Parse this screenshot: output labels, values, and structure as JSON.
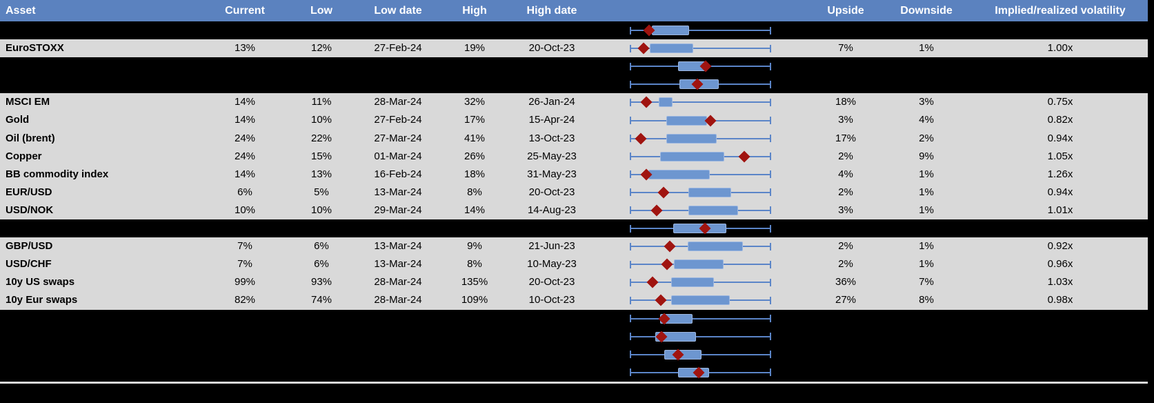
{
  "header": {
    "asset": "Asset",
    "current": "Current",
    "low": "Low",
    "low_date": "Low date",
    "high": "High",
    "high_date": "High date",
    "upside": "Upside",
    "downside": "Downside",
    "implied_realized": "Implied/realized volatility"
  },
  "colors": {
    "header_bg": "#5b82bf",
    "header_text": "#ffffff",
    "row_bg": "#d9d9d9",
    "spacer_bg": "#000000",
    "whisker": "#5b85c8",
    "box_fill": "#6d96d0",
    "box_border": "#9db7e0",
    "diamond": "#a01410",
    "bottom_line": "#d9d9d9"
  },
  "rows": [
    {
      "type": "spacer",
      "plot": {
        "box_start": 0.156,
        "box_end": 0.408,
        "diamond": 0.137
      }
    },
    {
      "type": "data",
      "label": "EuroSTOXX",
      "current": "13%",
      "low": "12%",
      "low_date": "27-Feb-24",
      "high": "19%",
      "high_date": "20-Oct-23",
      "upside": "7%",
      "downside": "1%",
      "implied_realized": "1.00x",
      "plot": {
        "box_start": 0.14,
        "box_end": 0.441,
        "diamond": 0.096
      }
    },
    {
      "type": "spacer",
      "plot": {
        "box_start": 0.343,
        "box_end": 0.53,
        "diamond": 0.538
      }
    },
    {
      "type": "spacer",
      "plot": {
        "box_start": 0.351,
        "box_end": 0.62,
        "diamond": 0.477
      }
    },
    {
      "type": "data",
      "label": "MSCI EM",
      "current": "14%",
      "low": "11%",
      "low_date": "28-Mar-24",
      "high": "32%",
      "high_date": "26-Jan-24",
      "upside": "18%",
      "downside": "3%",
      "implied_realized": "0.75x",
      "plot": {
        "box_start": 0.205,
        "box_end": 0.294,
        "diamond": 0.116
      }
    },
    {
      "type": "data",
      "label": "Gold",
      "current": "14%",
      "low": "10%",
      "low_date": "27-Feb-24",
      "high": "17%",
      "high_date": "15-Apr-24",
      "upside": "3%",
      "downside": "4%",
      "implied_realized": "0.82x",
      "plot": {
        "box_start": 0.259,
        "box_end": 0.535,
        "diamond": 0.571
      }
    },
    {
      "type": "data",
      "label": "Oil (brent)",
      "current": "24%",
      "low": "22%",
      "low_date": "27-Mar-24",
      "high": "41%",
      "high_date": "13-Oct-23",
      "upside": "17%",
      "downside": "2%",
      "implied_realized": "0.94x",
      "plot": {
        "box_start": 0.259,
        "box_end": 0.603,
        "diamond": 0.078
      }
    },
    {
      "type": "data",
      "label": "Copper",
      "current": "24%",
      "low": "15%",
      "low_date": "01-Mar-24",
      "high": "26%",
      "high_date": "25-May-23",
      "upside": "2%",
      "downside": "9%",
      "implied_realized": "1.05x",
      "plot": {
        "box_start": 0.213,
        "box_end": 0.659,
        "diamond": 0.81
      }
    },
    {
      "type": "data",
      "label": "BB commodity index",
      "current": "14%",
      "low": "13%",
      "low_date": "16-Feb-24",
      "high": "18%",
      "high_date": "31-May-23",
      "upside": "4%",
      "downside": "1%",
      "implied_realized": "1.26x",
      "plot": {
        "box_start": 0.132,
        "box_end": 0.558,
        "diamond": 0.116
      }
    },
    {
      "type": "data",
      "label": "EUR/USD",
      "current": "6%",
      "low": "5%",
      "low_date": "13-Mar-24",
      "high": "8%",
      "high_date": "20-Oct-23",
      "upside": "2%",
      "downside": "1%",
      "implied_realized": "0.94x",
      "plot": {
        "box_start": 0.416,
        "box_end": 0.709,
        "diamond": 0.24
      }
    },
    {
      "type": "data",
      "label": "USD/NOK",
      "current": "10%",
      "low": "10%",
      "low_date": "29-Mar-24",
      "high": "14%",
      "high_date": "14-Aug-23",
      "upside": "3%",
      "downside": "1%",
      "implied_realized": "1.01x",
      "plot": {
        "box_start": 0.416,
        "box_end": 0.755,
        "diamond": 0.192
      }
    },
    {
      "type": "spacer",
      "plot": {
        "box_start": 0.307,
        "box_end": 0.673,
        "diamond": 0.53
      }
    },
    {
      "type": "data",
      "label": "GBP/USD",
      "current": "7%",
      "low": "6%",
      "low_date": "13-Mar-24",
      "high": "9%",
      "high_date": "21-Jun-23",
      "upside": "2%",
      "downside": "1%",
      "implied_realized": "0.92x",
      "plot": {
        "box_start": 0.411,
        "box_end": 0.79,
        "diamond": 0.281
      }
    },
    {
      "type": "data",
      "label": "USD/CHF",
      "current": "7%",
      "low": "6%",
      "low_date": "13-Mar-24",
      "high": "8%",
      "high_date": "10-May-23",
      "upside": "2%",
      "downside": "1%",
      "implied_realized": "0.96x",
      "plot": {
        "box_start": 0.311,
        "box_end": 0.652,
        "diamond": 0.262
      }
    },
    {
      "type": "data",
      "label": "10y US swaps",
      "current": "99%",
      "low": "93%",
      "low_date": "28-Mar-24",
      "high": "135%",
      "high_date": "20-Oct-23",
      "upside": "36%",
      "downside": "7%",
      "implied_realized": "1.03x",
      "plot": {
        "box_start": 0.291,
        "box_end": 0.584,
        "diamond": 0.161
      }
    },
    {
      "type": "data",
      "label": "10y Eur swaps",
      "current": "82%",
      "low": "74%",
      "low_date": "28-Mar-24",
      "high": "109%",
      "high_date": "10-Oct-23",
      "upside": "27%",
      "downside": "8%",
      "implied_realized": "0.98x",
      "plot": {
        "box_start": 0.291,
        "box_end": 0.698,
        "diamond": 0.221
      }
    },
    {
      "type": "spacer",
      "plot": {
        "box_start": 0.213,
        "box_end": 0.433,
        "diamond": 0.242
      }
    },
    {
      "type": "spacer",
      "plot": {
        "box_start": 0.18,
        "box_end": 0.46,
        "diamond": 0.226
      }
    },
    {
      "type": "spacer",
      "plot": {
        "box_start": 0.242,
        "box_end": 0.497,
        "diamond": 0.343
      }
    },
    {
      "type": "spacer",
      "plot": {
        "box_start": 0.343,
        "box_end": 0.55,
        "diamond": 0.489
      }
    }
  ],
  "chart_data": {
    "type": "table",
    "columns": [
      "Asset",
      "Current",
      "Low",
      "Low date",
      "High",
      "High date",
      "Upside",
      "Downside",
      "Implied/realized volatility"
    ],
    "rows": [
      [
        "EuroSTOXX",
        "13%",
        "12%",
        "27-Feb-24",
        "19%",
        "20-Oct-23",
        "7%",
        "1%",
        "1.00x"
      ],
      [
        "MSCI EM",
        "14%",
        "11%",
        "28-Mar-24",
        "32%",
        "26-Jan-24",
        "18%",
        "3%",
        "0.75x"
      ],
      [
        "Gold",
        "14%",
        "10%",
        "27-Feb-24",
        "17%",
        "15-Apr-24",
        "3%",
        "4%",
        "0.82x"
      ],
      [
        "Oil (brent)",
        "24%",
        "22%",
        "27-Mar-24",
        "41%",
        "13-Oct-23",
        "17%",
        "2%",
        "0.94x"
      ],
      [
        "Copper",
        "24%",
        "15%",
        "01-Mar-24",
        "26%",
        "25-May-23",
        "2%",
        "9%",
        "1.05x"
      ],
      [
        "BB commodity index",
        "14%",
        "13%",
        "16-Feb-24",
        "18%",
        "31-May-23",
        "4%",
        "1%",
        "1.26x"
      ],
      [
        "EUR/USD",
        "6%",
        "5%",
        "13-Mar-24",
        "8%",
        "20-Oct-23",
        "2%",
        "1%",
        "0.94x"
      ],
      [
        "USD/NOK",
        "10%",
        "10%",
        "29-Mar-24",
        "14%",
        "14-Aug-23",
        "3%",
        "1%",
        "1.01x"
      ],
      [
        "GBP/USD",
        "7%",
        "6%",
        "13-Mar-24",
        "9%",
        "21-Jun-23",
        "2%",
        "1%",
        "0.92x"
      ],
      [
        "USD/CHF",
        "7%",
        "6%",
        "13-Mar-24",
        "8%",
        "10-May-23",
        "2%",
        "1%",
        "0.96x"
      ],
      [
        "10y US swaps",
        "99%",
        "93%",
        "28-Mar-24",
        "135%",
        "20-Oct-23",
        "36%",
        "7%",
        "1.03x"
      ],
      [
        "10y Eur swaps",
        "82%",
        "74%",
        "28-Mar-24",
        "109%",
        "10-Oct-23",
        "27%",
        "8%",
        "0.98x"
      ]
    ],
    "embedded_boxplot_column": {
      "type": "box",
      "orientation": "horizontal",
      "x_range_normalized": [
        0,
        1
      ],
      "whiskers": "every row spans the full low-to-high range (fixed-width whisker with end caps)",
      "marker": "red diamond = current level",
      "series": [
        {
          "label": "",
          "box": [
            0.156,
            0.408
          ],
          "diamond": 0.137
        },
        {
          "label": "EuroSTOXX",
          "box": [
            0.14,
            0.441
          ],
          "diamond": 0.096
        },
        {
          "label": "",
          "box": [
            0.343,
            0.53
          ],
          "diamond": 0.538
        },
        {
          "label": "",
          "box": [
            0.351,
            0.62
          ],
          "diamond": 0.477
        },
        {
          "label": "MSCI EM",
          "box": [
            0.205,
            0.294
          ],
          "diamond": 0.116
        },
        {
          "label": "Gold",
          "box": [
            0.259,
            0.535
          ],
          "diamond": 0.571
        },
        {
          "label": "Oil (brent)",
          "box": [
            0.259,
            0.603
          ],
          "diamond": 0.078
        },
        {
          "label": "Copper",
          "box": [
            0.213,
            0.659
          ],
          "diamond": 0.81
        },
        {
          "label": "BB commodity index",
          "box": [
            0.132,
            0.558
          ],
          "diamond": 0.116
        },
        {
          "label": "EUR/USD",
          "box": [
            0.416,
            0.709
          ],
          "diamond": 0.24
        },
        {
          "label": "USD/NOK",
          "box": [
            0.416,
            0.755
          ],
          "diamond": 0.192
        },
        {
          "label": "",
          "box": [
            0.307,
            0.673
          ],
          "diamond": 0.53
        },
        {
          "label": "GBP/USD",
          "box": [
            0.411,
            0.79
          ],
          "diamond": 0.281
        },
        {
          "label": "USD/CHF",
          "box": [
            0.311,
            0.652
          ],
          "diamond": 0.262
        },
        {
          "label": "10y US swaps",
          "box": [
            0.291,
            0.584
          ],
          "diamond": 0.161
        },
        {
          "label": "10y Eur swaps",
          "box": [
            0.291,
            0.698
          ],
          "diamond": 0.221
        },
        {
          "label": "",
          "box": [
            0.213,
            0.433
          ],
          "diamond": 0.242
        },
        {
          "label": "",
          "box": [
            0.18,
            0.46
          ],
          "diamond": 0.226
        },
        {
          "label": "",
          "box": [
            0.242,
            0.497
          ],
          "diamond": 0.343
        },
        {
          "label": "",
          "box": [
            0.343,
            0.55
          ],
          "diamond": 0.489
        }
      ]
    }
  }
}
